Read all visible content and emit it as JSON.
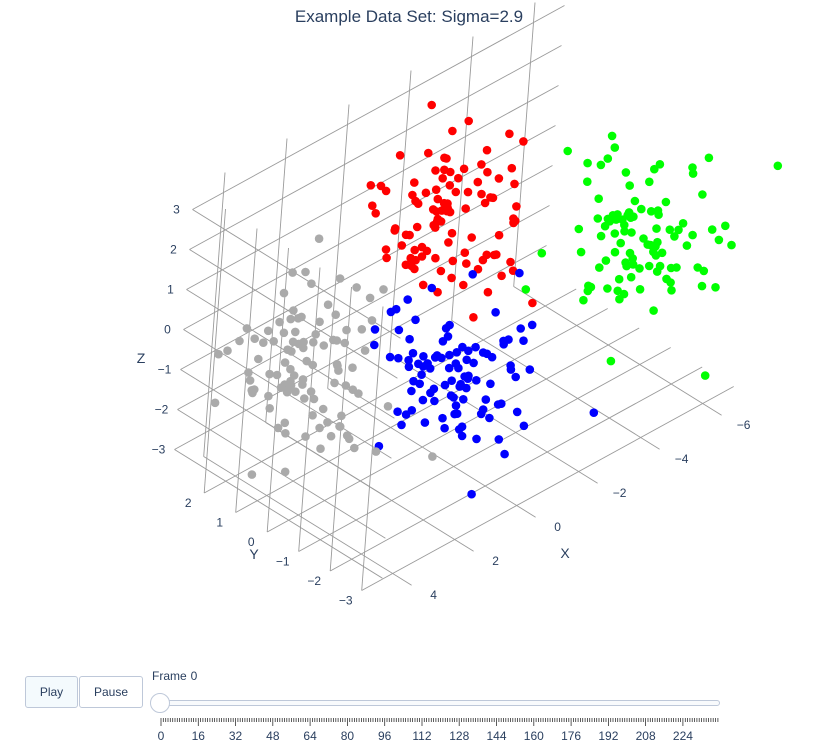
{
  "chart_data": {
    "type": "scatter3d",
    "title": "Example Data Set: Sigma=2.9",
    "axes": {
      "x": {
        "label": "X",
        "ticks": [
          "−6",
          "−4",
          "−2",
          "0",
          "2",
          "4"
        ]
      },
      "y": {
        "label": "Y",
        "ticks": [
          "−3",
          "−2",
          "−1",
          "0",
          "1",
          "2"
        ]
      },
      "z": {
        "label": "Z",
        "ticks": [
          "3",
          "2",
          "1",
          "0",
          "−1",
          "−2",
          "−3"
        ]
      }
    },
    "grid": true,
    "series": [
      {
        "color": "#ff0000",
        "center": [
          -1,
          0.5,
          1.5
        ],
        "spread": 0.9,
        "n": 100
      },
      {
        "color": "#00ff00",
        "center": [
          -5,
          -1.5,
          0.1
        ],
        "spread": 0.9,
        "n": 100
      },
      {
        "color": "#0000ff",
        "center": [
          0,
          -1,
          -1.2
        ],
        "spread": 0.9,
        "n": 100
      },
      {
        "color": "#aaaaaa",
        "center": [
          2.5,
          1.5,
          -1.2
        ],
        "spread": 0.9,
        "n": 100
      }
    ]
  },
  "controls": {
    "play_label": "Play",
    "pause_label": "Pause",
    "frame_label_prefix": "Frame",
    "frame_value": "0",
    "slider_ticks": [
      "0",
      "16",
      "32",
      "48",
      "64",
      "80",
      "96",
      "112",
      "128",
      "144",
      "160",
      "176",
      "192",
      "208",
      "224"
    ]
  }
}
